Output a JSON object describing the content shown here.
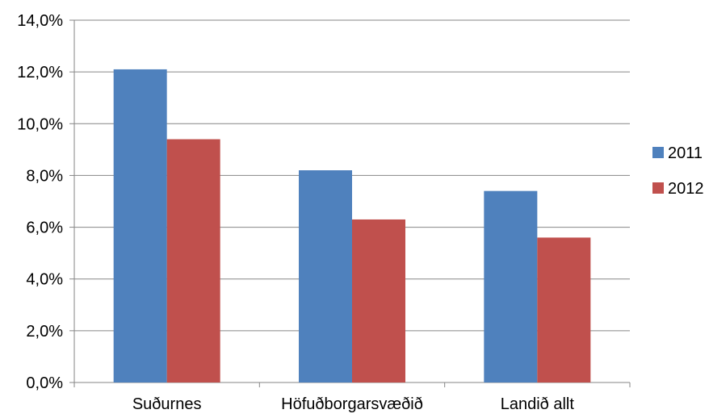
{
  "chart_data": {
    "type": "bar",
    "categories": [
      "Suðurnes",
      "Höfuðborgarsvæðið",
      "Landið allt"
    ],
    "series": [
      {
        "name": "2011",
        "values": [
          12.1,
          8.2,
          7.4
        ],
        "color": "#4f81bd"
      },
      {
        "name": "2012",
        "values": [
          9.4,
          6.3,
          5.6
        ],
        "color": "#c0504d"
      }
    ],
    "title": "",
    "xlabel": "",
    "ylabel": "",
    "ylim": [
      0,
      14
    ],
    "y_ticks": [
      "0,0%",
      "2,0%",
      "4,0%",
      "6,0%",
      "8,0%",
      "10,0%",
      "12,0%",
      "14,0%"
    ],
    "grid": true,
    "legend_position": "right"
  }
}
